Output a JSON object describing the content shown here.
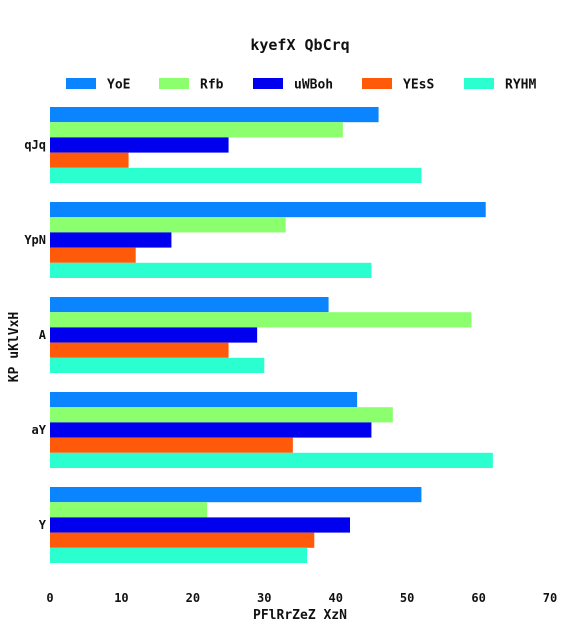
{
  "chart_data": {
    "type": "bar",
    "orientation": "horizontal",
    "title": "kyefX QbCrq",
    "xlabel": "PFlRrZeZ XzN",
    "ylabel": "KP uKlVxH",
    "xlim": [
      0,
      70
    ],
    "xticks": [
      0,
      10,
      20,
      30,
      40,
      50,
      60,
      70
    ],
    "grid": false,
    "legend_position": "top",
    "categories": [
      "qJq",
      "YpN",
      "A",
      "aY",
      "Y"
    ],
    "series": [
      {
        "name": "YoE",
        "color": "#0a84ff",
        "values": [
          46,
          61,
          39,
          43,
          52
        ]
      },
      {
        "name": "Rfb",
        "color": "#8cff6e",
        "values": [
          41,
          33,
          59,
          48,
          22
        ]
      },
      {
        "name": "uWBoh",
        "color": "#0000ee",
        "values": [
          25,
          17,
          29,
          45,
          42
        ]
      },
      {
        "name": "YEsS",
        "color": "#ff5a0a",
        "values": [
          11,
          12,
          25,
          34,
          37
        ]
      },
      {
        "name": "RYHM",
        "color": "#2bffcf",
        "values": [
          52,
          45,
          30,
          62,
          36
        ]
      }
    ]
  }
}
